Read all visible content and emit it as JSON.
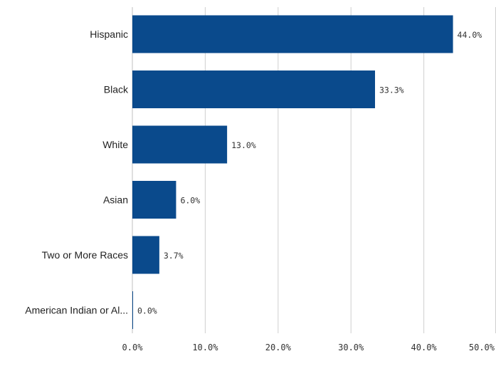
{
  "chart_data": {
    "type": "bar",
    "orientation": "horizontal",
    "categories": [
      "Hispanic",
      "Black",
      "White",
      "Asian",
      "Two or More Races",
      "American Indian or Al..."
    ],
    "values": [
      44.0,
      33.3,
      13.0,
      6.0,
      3.7,
      0.0
    ],
    "value_labels": [
      "44.0%",
      "33.3%",
      "13.0%",
      "6.0%",
      "3.7%",
      "0.0%"
    ],
    "xlim": [
      0,
      50
    ],
    "xticks": [
      0,
      10,
      20,
      30,
      40,
      50
    ],
    "xtick_labels": [
      "0.0%",
      "10.0%",
      "20.0%",
      "30.0%",
      "40.0%",
      "50.0%"
    ],
    "grid": true,
    "legend": "none",
    "colors": {
      "bar": "#0a4a8c"
    }
  }
}
